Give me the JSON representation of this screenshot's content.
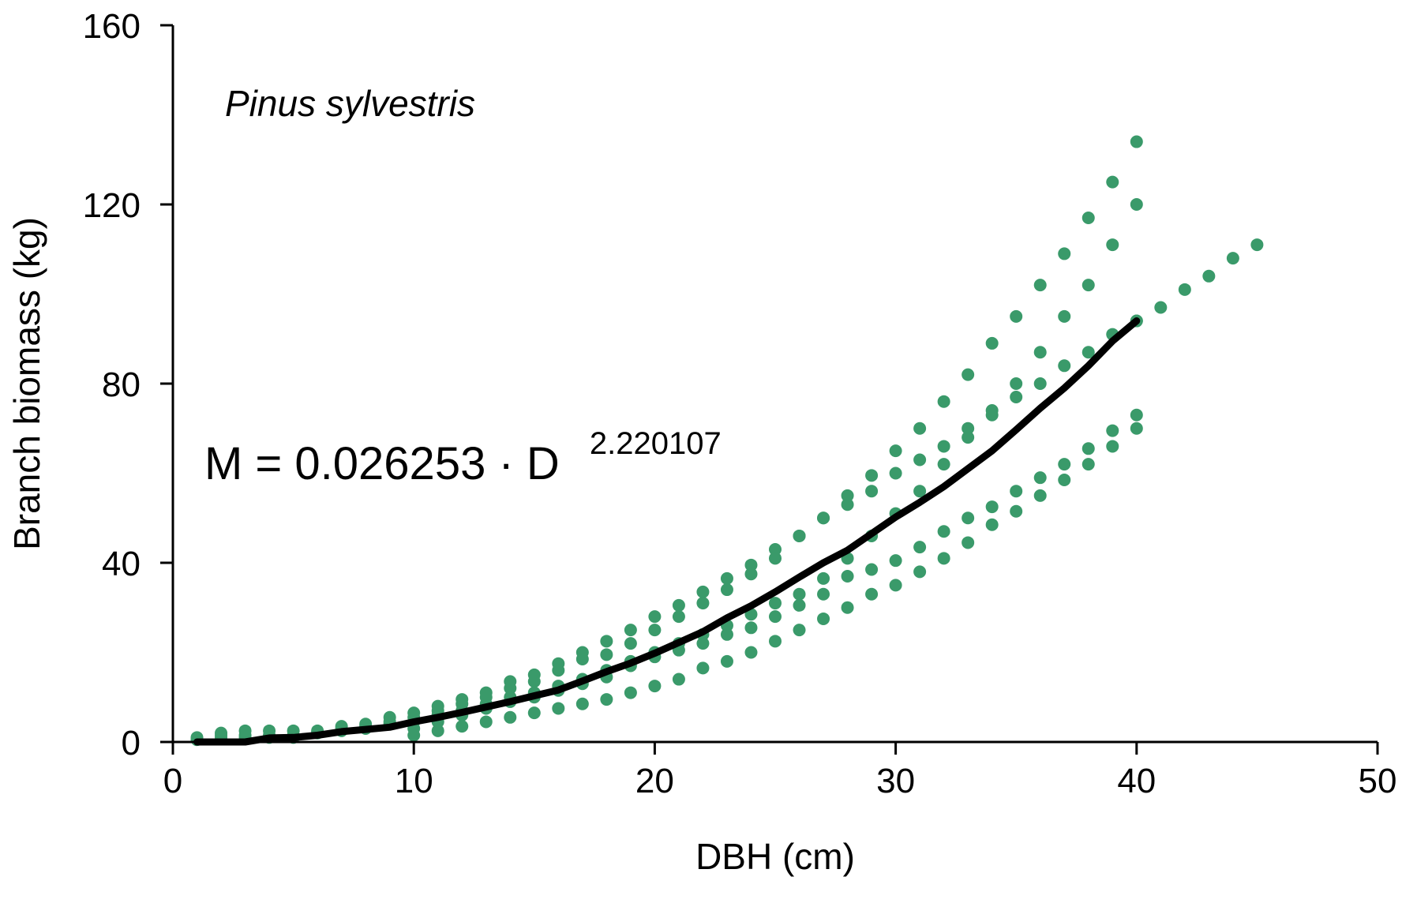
{
  "chart_data": {
    "type": "scatter",
    "title": "",
    "xlabel": "DBH (cm)",
    "ylabel": "Branch biomass (kg)",
    "xlim": [
      0,
      50
    ],
    "ylim": [
      0,
      160
    ],
    "xticks": [
      "0",
      "10",
      "20",
      "30",
      "40",
      "50"
    ],
    "yticks": [
      "0",
      "40",
      "80",
      "120",
      "160"
    ],
    "grid": false,
    "legend": "none",
    "colors": {
      "points": "#3a9a6a",
      "fit": "#000000"
    },
    "annotation": "Pinus sylvestris",
    "equation": {
      "base": "M = 0.026253 · D",
      "exponent": "2.220107"
    },
    "fit_line": {
      "formula": "M = 0.026253 * D^2.220107",
      "x": [
        1,
        2,
        3,
        4,
        5,
        6,
        7,
        8,
        9,
        10,
        11,
        12,
        13,
        14,
        15,
        16,
        17,
        18,
        19,
        20,
        21,
        22,
        23,
        24,
        25,
        26,
        27,
        28,
        29,
        30,
        31,
        32,
        33,
        34,
        35,
        36,
        37,
        38,
        39,
        40
      ],
      "y": [
        0.0,
        0.0,
        0.0,
        0.9,
        1.0,
        1.5,
        2.3,
        2.8,
        3.3,
        4.5,
        5.5,
        6.6,
        7.8,
        9.0,
        10.3,
        11.6,
        13.6,
        15.7,
        17.6,
        19.8,
        22.2,
        24.6,
        27.7,
        30.4,
        33.5,
        36.8,
        40.0,
        42.8,
        46.5,
        50.2,
        53.5,
        57.0,
        61.0,
        65.0,
        69.7,
        74.5,
        79.0,
        84.0,
        89.5,
        94.0
      ]
    },
    "series": [
      {
        "x": [
          1,
          2,
          3,
          4,
          5,
          6,
          7,
          8,
          9,
          10,
          11,
          12,
          13,
          14,
          15,
          16,
          17,
          18,
          19,
          20,
          21,
          22,
          23,
          24,
          25,
          26,
          27,
          28,
          29,
          30,
          31,
          32,
          33,
          34,
          35,
          36,
          37,
          38,
          39,
          40
        ],
        "y": [
          1.0,
          2.0,
          2.5,
          2.5,
          2.5,
          2.5,
          3.5,
          4.0,
          5.5,
          6.5,
          8.0,
          9.5,
          11.0,
          13.5,
          15.0,
          17.5,
          20.0,
          22.5,
          25.0,
          28.0,
          30.5,
          33.5,
          36.5,
          39.5,
          43.0,
          46.0,
          50.0,
          55.0,
          59.5,
          65.0,
          70.0,
          76.0,
          82.0,
          89.0,
          95.0,
          102.0,
          109.0,
          117.0,
          125.0,
          134.0
        ]
      },
      {
        "x": [
          2,
          3,
          4,
          5,
          6,
          7,
          8,
          9,
          10,
          11,
          12,
          13,
          14,
          15,
          16,
          17,
          18,
          19,
          20,
          21,
          22,
          23,
          24,
          25,
          26,
          27,
          28,
          29,
          30,
          31,
          32,
          33,
          34,
          35,
          36,
          37,
          38,
          39,
          40
        ],
        "y": [
          1.5,
          1.5,
          1.5,
          1.5,
          2.0,
          3.0,
          3.5,
          4.5,
          5.5,
          7.0,
          8.5,
          10.0,
          12.0,
          13.5,
          16.0,
          18.5,
          19.5,
          22.0,
          25.0,
          28.0,
          31.0,
          34.0,
          37.5,
          41.0,
          46.0,
          50.0,
          53.0,
          56.0,
          60.0,
          63.0,
          66.0,
          70.0,
          74.0,
          80.0,
          87.0,
          95.0,
          102.0,
          111.0,
          120.0
        ]
      },
      {
        "x": [
          1,
          2,
          3,
          4,
          5,
          6,
          7,
          8,
          9,
          10,
          11,
          12,
          13,
          14,
          15,
          16,
          17,
          18,
          19,
          20,
          21,
          22,
          23,
          24,
          25,
          26,
          27,
          28,
          29,
          30,
          31,
          32,
          33,
          34,
          35,
          36,
          37,
          38,
          39,
          40
        ],
        "y": [
          0.5,
          1.0,
          1.0,
          1.0,
          1.0,
          2.0,
          2.5,
          3.0,
          4.0,
          4.5,
          6.0,
          7.0,
          8.5,
          10.0,
          11.0,
          12.5,
          14.0,
          16.0,
          18.0,
          20.0,
          22.0,
          24.0,
          26.0,
          28.5,
          31.0,
          33.0,
          36.5,
          41.0,
          46.0,
          51.0,
          56.0,
          62.0,
          68.0,
          73.0,
          77.0,
          80.0,
          84.0,
          87.0,
          91.0,
          94.0
        ]
      },
      {
        "x": [
          10,
          11,
          12,
          13,
          14,
          15,
          16,
          17,
          18,
          19,
          20,
          21,
          22,
          23,
          24,
          25,
          26,
          27,
          28,
          29,
          30,
          31,
          32,
          33,
          34,
          35,
          36,
          37,
          38,
          39,
          40
        ],
        "y": [
          3.0,
          4.5,
          6.0,
          7.5,
          9.0,
          10.0,
          11.5,
          13.0,
          14.5,
          17.0,
          19.0,
          20.5,
          22.0,
          24.0,
          25.5,
          28.0,
          30.5,
          33.0,
          37.0,
          38.5,
          40.5,
          43.5,
          47.0,
          50.0,
          52.5,
          56.0,
          59.0,
          62.0,
          65.5,
          69.5,
          73.0
        ]
      },
      {
        "x": [
          10,
          11,
          12,
          13,
          14,
          15,
          16,
          17,
          18,
          19,
          20,
          21,
          22,
          23,
          24,
          25,
          26,
          27,
          28,
          29,
          30,
          31,
          32,
          33,
          34,
          35,
          36,
          37,
          38,
          39,
          40
        ],
        "y": [
          1.5,
          2.5,
          3.5,
          4.5,
          5.5,
          6.5,
          7.5,
          8.5,
          9.5,
          11.0,
          12.5,
          14.0,
          16.5,
          18.0,
          20.0,
          22.5,
          25.0,
          27.5,
          30.0,
          33.0,
          35.0,
          38.0,
          41.0,
          44.5,
          48.5,
          51.5,
          55.0,
          58.5,
          62.0,
          66.0,
          70.0
        ]
      },
      {
        "x": [
          40,
          41,
          42,
          43,
          44,
          45
        ],
        "y": [
          94.0,
          97.0,
          101.0,
          104.0,
          108.0,
          111.0
        ]
      }
    ]
  }
}
